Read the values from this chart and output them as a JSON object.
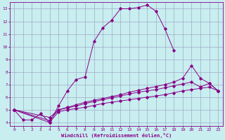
{
  "xlabel": "Windchill (Refroidissement éolien,°C)",
  "background_color": "#c8eef0",
  "line_color": "#880088",
  "grid_color": "#9999bb",
  "xlim": [
    -0.5,
    23.5
  ],
  "ylim": [
    3.7,
    13.5
  ],
  "xticks": [
    0,
    1,
    2,
    3,
    4,
    5,
    6,
    7,
    8,
    9,
    10,
    11,
    12,
    13,
    14,
    15,
    16,
    17,
    18,
    19,
    20,
    21,
    22,
    23
  ],
  "yticks": [
    4,
    5,
    6,
    7,
    8,
    9,
    10,
    11,
    12,
    13
  ],
  "series": [
    {
      "x": [
        0,
        1,
        2,
        3,
        4,
        5,
        6,
        7,
        8,
        9,
        10,
        11,
        12,
        13,
        14,
        15,
        16,
        17,
        18
      ],
      "y": [
        5.0,
        4.2,
        4.2,
        4.7,
        4.0,
        5.3,
        6.5,
        7.4,
        7.6,
        10.4,
        11.5,
        12.1,
        13.0,
        13.0,
        13.1,
        13.3,
        12.8,
        11.4,
        9.7
      ]
    },
    {
      "x": [
        0,
        4,
        5,
        6,
        7,
        8,
        9,
        10,
        11,
        12,
        13,
        14,
        15,
        16,
        17,
        18,
        19,
        20,
        21,
        22,
        23
      ],
      "y": [
        5.0,
        4.4,
        5.0,
        5.15,
        5.3,
        5.5,
        5.65,
        5.8,
        5.95,
        6.1,
        6.25,
        6.4,
        6.5,
        6.6,
        6.75,
        6.9,
        7.05,
        7.2,
        6.8,
        7.1,
        6.5
      ]
    },
    {
      "x": [
        0,
        4,
        5,
        6,
        7,
        8,
        9,
        10,
        11,
        12,
        13,
        14,
        15,
        16,
        17,
        18,
        19,
        20,
        21,
        22,
        23
      ],
      "y": [
        5.0,
        4.15,
        5.0,
        5.2,
        5.4,
        5.6,
        5.75,
        5.9,
        6.05,
        6.2,
        6.4,
        6.55,
        6.7,
        6.85,
        7.0,
        7.2,
        7.5,
        8.5,
        7.5,
        7.1,
        6.5
      ]
    },
    {
      "x": [
        0,
        4,
        5,
        6,
        7,
        8,
        9,
        10,
        11,
        12,
        13,
        14,
        15,
        16,
        17,
        18,
        19,
        20,
        21,
        22,
        23
      ],
      "y": [
        5.0,
        4.0,
        4.85,
        5.0,
        5.1,
        5.2,
        5.35,
        5.5,
        5.6,
        5.7,
        5.8,
        5.9,
        6.0,
        6.1,
        6.2,
        6.35,
        6.5,
        6.6,
        6.7,
        6.8,
        6.5
      ]
    }
  ]
}
